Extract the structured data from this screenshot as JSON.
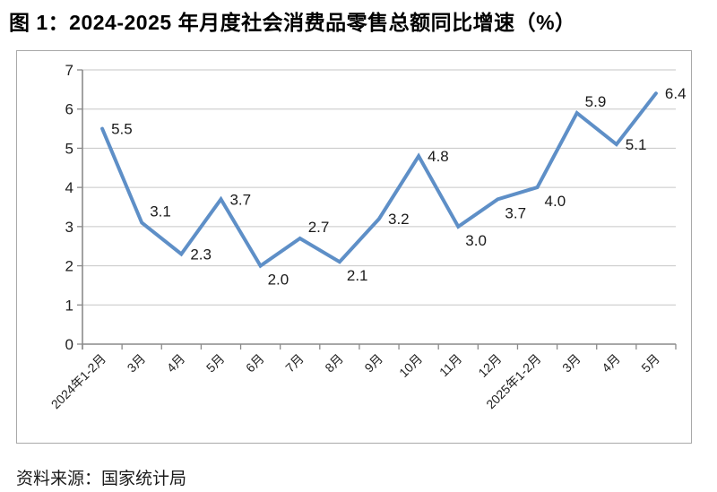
{
  "title": "图 1：2024-2025 年月度社会消费品零售总额同比增速（%）",
  "source": "资料来源：国家统计局",
  "chart_data": {
    "type": "line",
    "title": "图 1：2024-2025 年月度社会消费品零售总额同比增速（%）",
    "categories": [
      "2024年1-2月",
      "3月",
      "4月",
      "5月",
      "6月",
      "7月",
      "8月",
      "9月",
      "10月",
      "11月",
      "12月",
      "2025年1-2月",
      "3月",
      "4月",
      "5月"
    ],
    "values": [
      5.5,
      3.1,
      2.3,
      3.7,
      2.0,
      2.7,
      2.1,
      3.2,
      4.8,
      3.0,
      3.7,
      4.0,
      5.9,
      5.1,
      6.4
    ],
    "ylim": [
      0,
      7
    ],
    "ytick_step": 1,
    "grid": true,
    "legend": "none",
    "xlabel": "",
    "ylabel": "",
    "line_color": "#5E8FC7",
    "grid_color": "#c6c6c6",
    "axis_color": "#8a8a8a",
    "label_color": "#1a1a1a",
    "label_positions": [
      "right",
      "above-right",
      "right",
      "right",
      "below-right",
      "above-right",
      "below-right",
      "right",
      "right",
      "below-right",
      "below-right",
      "below-right",
      "above-right",
      "right",
      "right"
    ]
  }
}
